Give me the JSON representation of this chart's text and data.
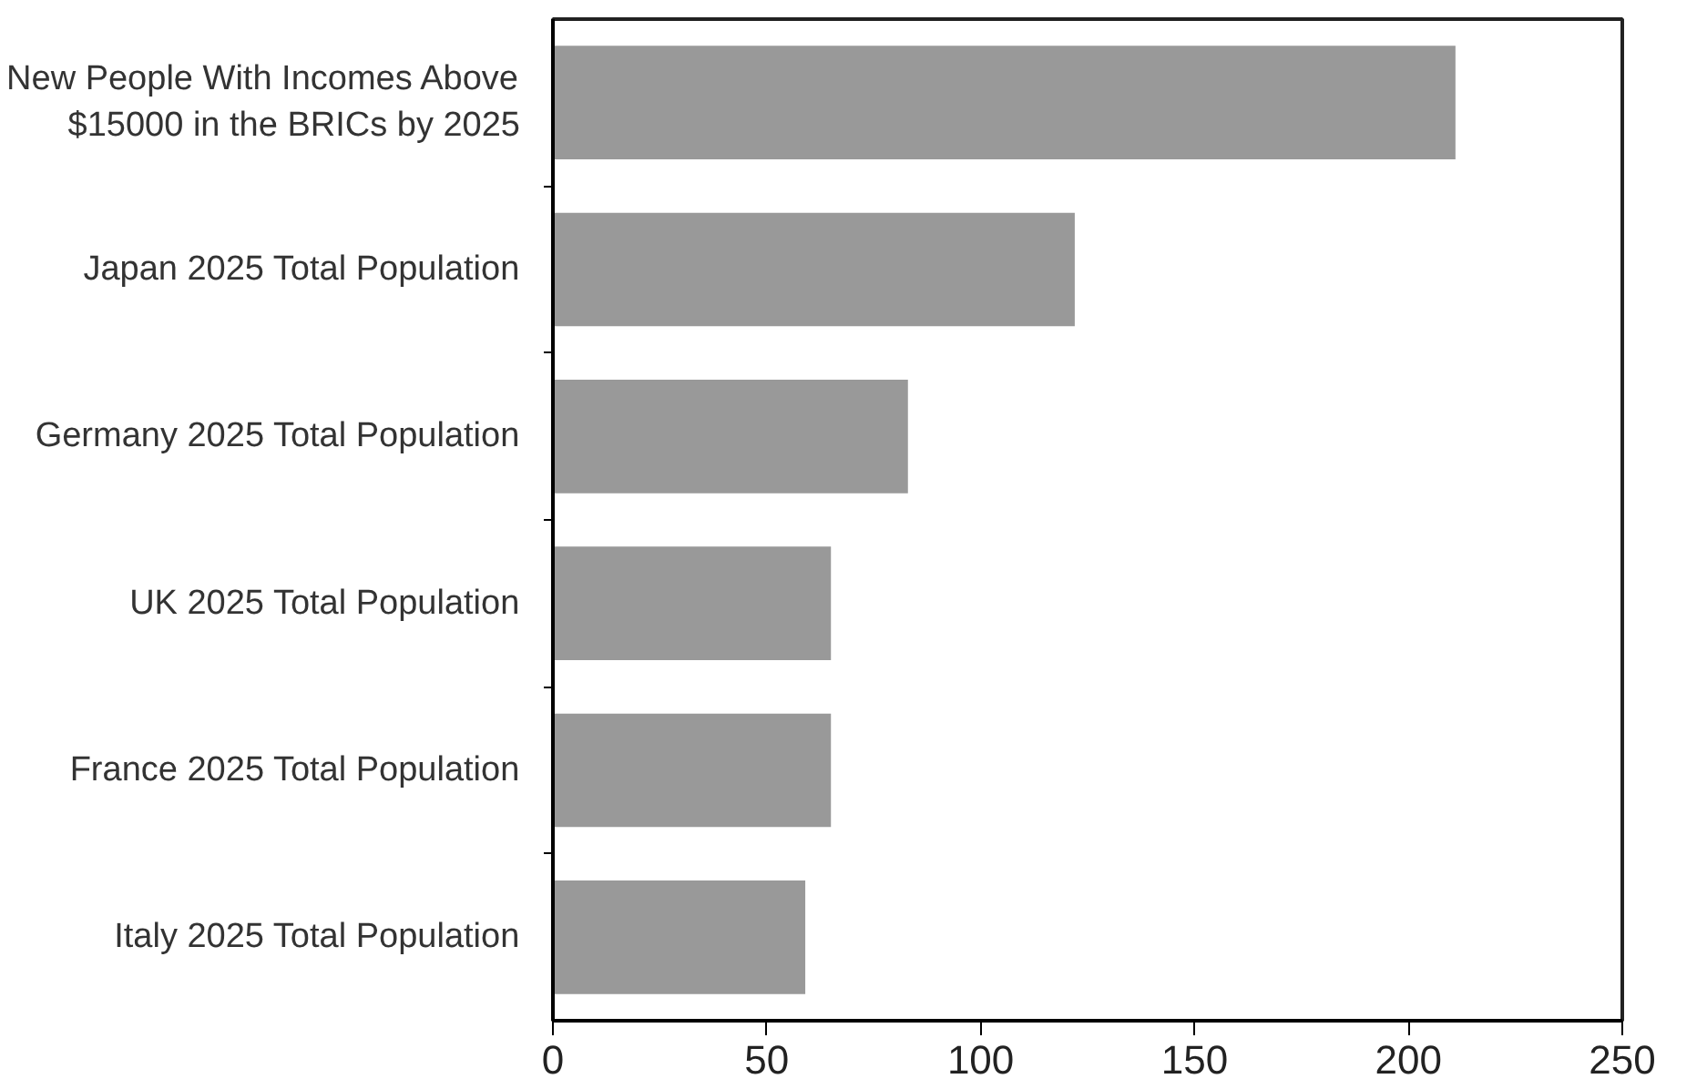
{
  "chart_data": {
    "type": "bar",
    "orientation": "horizontal",
    "categories": [
      "New People With Incomes Above\n$15000 in the BRICs by 2025",
      "Japan 2025 Total Population",
      "Germany 2025 Total Population",
      "UK 2025 Total Population",
      "France 2025 Total Population",
      "Italy 2025 Total Population"
    ],
    "values": [
      211,
      122,
      83,
      65,
      65,
      59
    ],
    "color": "#999999",
    "xlim": [
      0,
      250
    ],
    "xticks": [
      0,
      50,
      100,
      150,
      200,
      250
    ],
    "grid": false
  }
}
